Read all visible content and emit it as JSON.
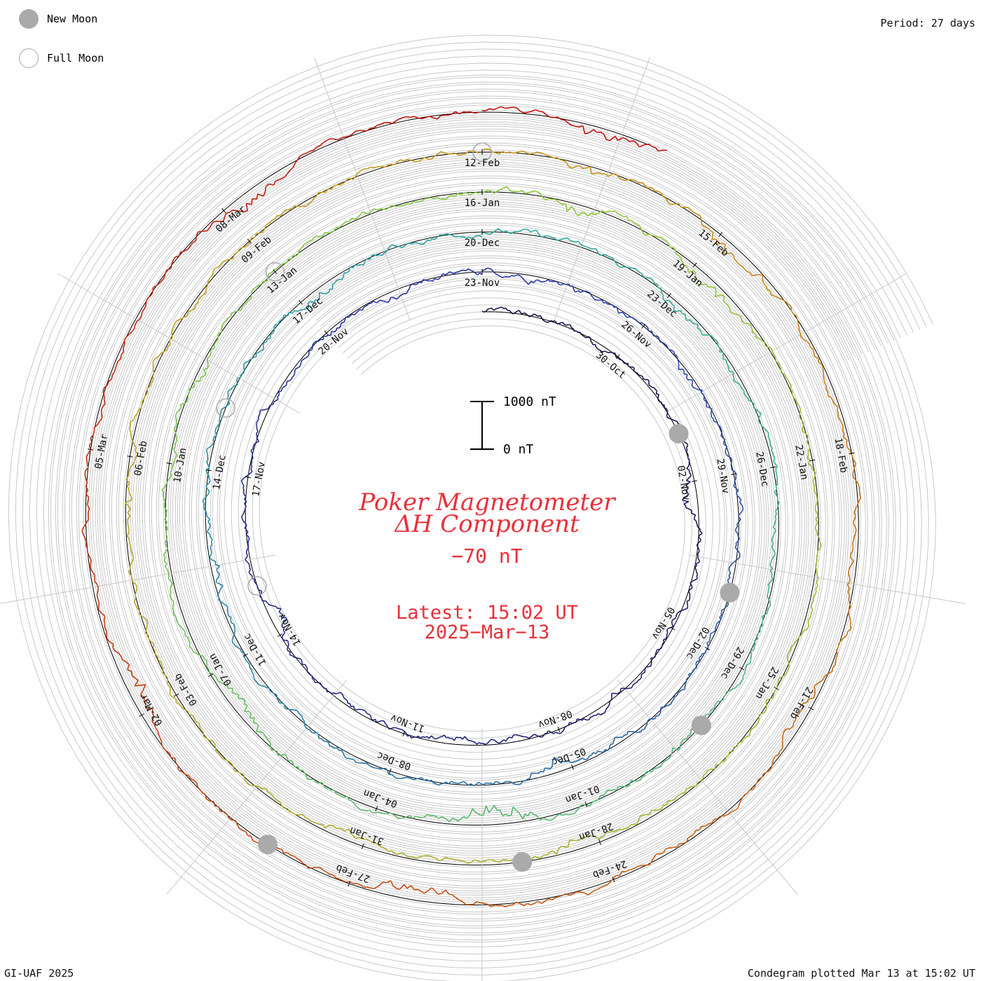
{
  "legend": {
    "new_moon_label": "New Moon",
    "full_moon_label": "Full Moon",
    "new_moon_color": "#aaaaaa",
    "full_moon_color": "#aaaaaa"
  },
  "period_label": "Period: 27 days",
  "footer_left": "GI-UAF 2025",
  "footer_right": "Condegram plotted Mar 13 at 15:02 UT",
  "title_line1": "Poker Magnetometer",
  "title_line2": "ΔH Component",
  "current_value": "−70 nT",
  "latest_time": "Latest: 15:02 UT",
  "latest_date": "2025−Mar−13",
  "scale_bar": {
    "top_label": "1000 nT",
    "bottom_label": "0 nT",
    "top_value_nT": 1000,
    "bottom_value_nT": 0
  },
  "accent_color": "#e8303a",
  "chart_data": {
    "type": "line",
    "projection": "spiral condegram",
    "period_days": 27,
    "start_date": "2024-10-27",
    "end_date": "2025-03-13",
    "date_labels": [
      "30-Oct",
      "02-Nov",
      "05-Nov",
      "08-Nov",
      "11-Nov",
      "14-Nov",
      "17-Nov",
      "20-Nov",
      "23-Nov",
      "26-Nov",
      "29-Nov",
      "02-Dec",
      "05-Dec",
      "08-Dec",
      "11-Dec",
      "14-Dec",
      "17-Dec",
      "20-Dec",
      "23-Dec",
      "26-Dec",
      "29-Dec",
      "01-Jan",
      "04-Jan",
      "07-Jan",
      "10-Jan",
      "13-Jan",
      "16-Jan",
      "19-Jan",
      "22-Jan",
      "25-Jan",
      "28-Jan",
      "31-Jan",
      "03-Feb",
      "06-Feb",
      "09-Feb",
      "12-Feb",
      "15-Feb",
      "18-Feb",
      "21-Feb",
      "24-Feb",
      "27-Feb",
      "02-Mar",
      "05-Mar",
      "08-Mar"
    ],
    "series": [
      {
        "start": "2024-10-27",
        "color": "#1a1040",
        "events": [
          {
            "day": 6,
            "amp": 110
          },
          {
            "day": 14,
            "amp": 70
          },
          {
            "day": 18,
            "amp": 130
          },
          {
            "day": 25,
            "amp": 60
          }
        ]
      },
      {
        "start": "2024-11-23",
        "color": "#2a35a8",
        "events": [
          {
            "day": 1,
            "amp": 80
          },
          {
            "day": 4,
            "amp": 60
          },
          {
            "day": 12,
            "amp": 100
          },
          {
            "day": 19,
            "amp": 70
          },
          {
            "day": 24,
            "amp": 110
          }
        ]
      },
      {
        "start": "2024-12-20",
        "color": "#2aa7a0",
        "events": [
          {
            "day": 3,
            "amp": 70
          },
          {
            "day": 10,
            "amp": 90
          },
          {
            "day": 13,
            "amp": 220
          },
          {
            "day": 17,
            "amp": 130
          },
          {
            "day": 22,
            "amp": 80
          }
        ]
      },
      {
        "start": "2025-01-16",
        "color": "#8cc83c",
        "events": [
          {
            "day": 1,
            "amp": 80
          },
          {
            "day": 3,
            "amp": 130
          },
          {
            "day": 12,
            "amp": 120
          },
          {
            "day": 15,
            "amp": 100
          },
          {
            "day": 20,
            "amp": 90
          }
        ]
      },
      {
        "start": "2025-02-12",
        "color": "#c89a1a",
        "events": [
          {
            "day": 1,
            "amp": 110
          },
          {
            "day": 3,
            "amp": 150
          },
          {
            "day": 9,
            "amp": 80
          },
          {
            "day": 14,
            "amp": 130
          },
          {
            "day": 18,
            "amp": 160
          },
          {
            "day": 24,
            "amp": 140
          }
        ]
      },
      {
        "start": "2025-03-11",
        "color": "#c01010",
        "events": [
          {
            "day": 1,
            "amp": 120
          }
        ]
      }
    ],
    "new_moon_dates": [
      "2024-11-01",
      "2024-12-01",
      "2024-12-30",
      "2025-01-29",
      "2025-02-28"
    ],
    "full_moon_dates": [
      "2024-11-15",
      "2024-12-15",
      "2025-01-13",
      "2025-02-12"
    ],
    "baseline_nT": 0,
    "scale_nT": 1000
  }
}
